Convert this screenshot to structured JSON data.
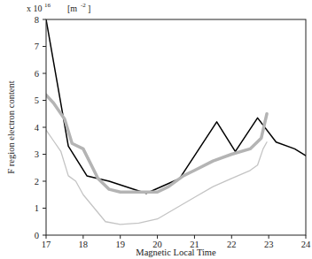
{
  "chart_data": {
    "type": "line",
    "y_label": "F region electron content",
    "x_label": "Magnetic Local Time",
    "y_unit_prefix": "x 10",
    "y_unit_exponent": "16",
    "y_unit": "[m",
    "y_unit_unit_exponent": "-2",
    "y_unit_suffix": "]",
    "xlim": [
      17,
      24
    ],
    "xticks": [
      17,
      18,
      19,
      20,
      21,
      22,
      23,
      24
    ],
    "ylim": [
      0,
      8
    ],
    "yticks": [
      0,
      1,
      2,
      3,
      4,
      5,
      6,
      7,
      8
    ],
    "grid": false,
    "series": [
      {
        "color": "#000000",
        "line_style": "solid",
        "x": [
          17,
          17.6,
          18.1,
          18.7,
          19.7,
          20.6,
          21.6,
          22.1,
          22.7,
          23.2,
          23.7,
          24
        ],
        "values": [
          8.0,
          3.3,
          2.2,
          2.0,
          1.55,
          2.1,
          4.2,
          3.1,
          4.35,
          3.45,
          3.2,
          2.95
        ]
      },
      {
        "color": "#b4b4b4",
        "line_style": "thick",
        "x": [
          17,
          17.2,
          17.5,
          17.7,
          18,
          18.4,
          18.7,
          19,
          19.5,
          20,
          20.3,
          20.7,
          21,
          21.5,
          22,
          22.5,
          22.8,
          22.95
        ],
        "values": [
          5.2,
          4.9,
          4.3,
          3.4,
          3.2,
          2.1,
          1.7,
          1.6,
          1.6,
          1.6,
          1.8,
          2.2,
          2.4,
          2.75,
          3.0,
          3.2,
          3.6,
          4.5
        ]
      },
      {
        "color": "#c4c4c4",
        "line_style": "thin",
        "x": [
          17,
          17.2,
          17.4,
          17.6,
          17.8,
          18,
          18.3,
          18.6,
          19,
          19.5,
          20,
          20.5,
          21,
          21.5,
          22,
          22.5,
          22.7,
          22.85,
          22.95
        ],
        "values": [
          3.9,
          3.5,
          3.1,
          2.2,
          2.0,
          1.5,
          1.0,
          0.5,
          0.4,
          0.45,
          0.6,
          1.0,
          1.4,
          1.8,
          2.1,
          2.4,
          2.6,
          3.2,
          3.45
        ]
      }
    ]
  }
}
